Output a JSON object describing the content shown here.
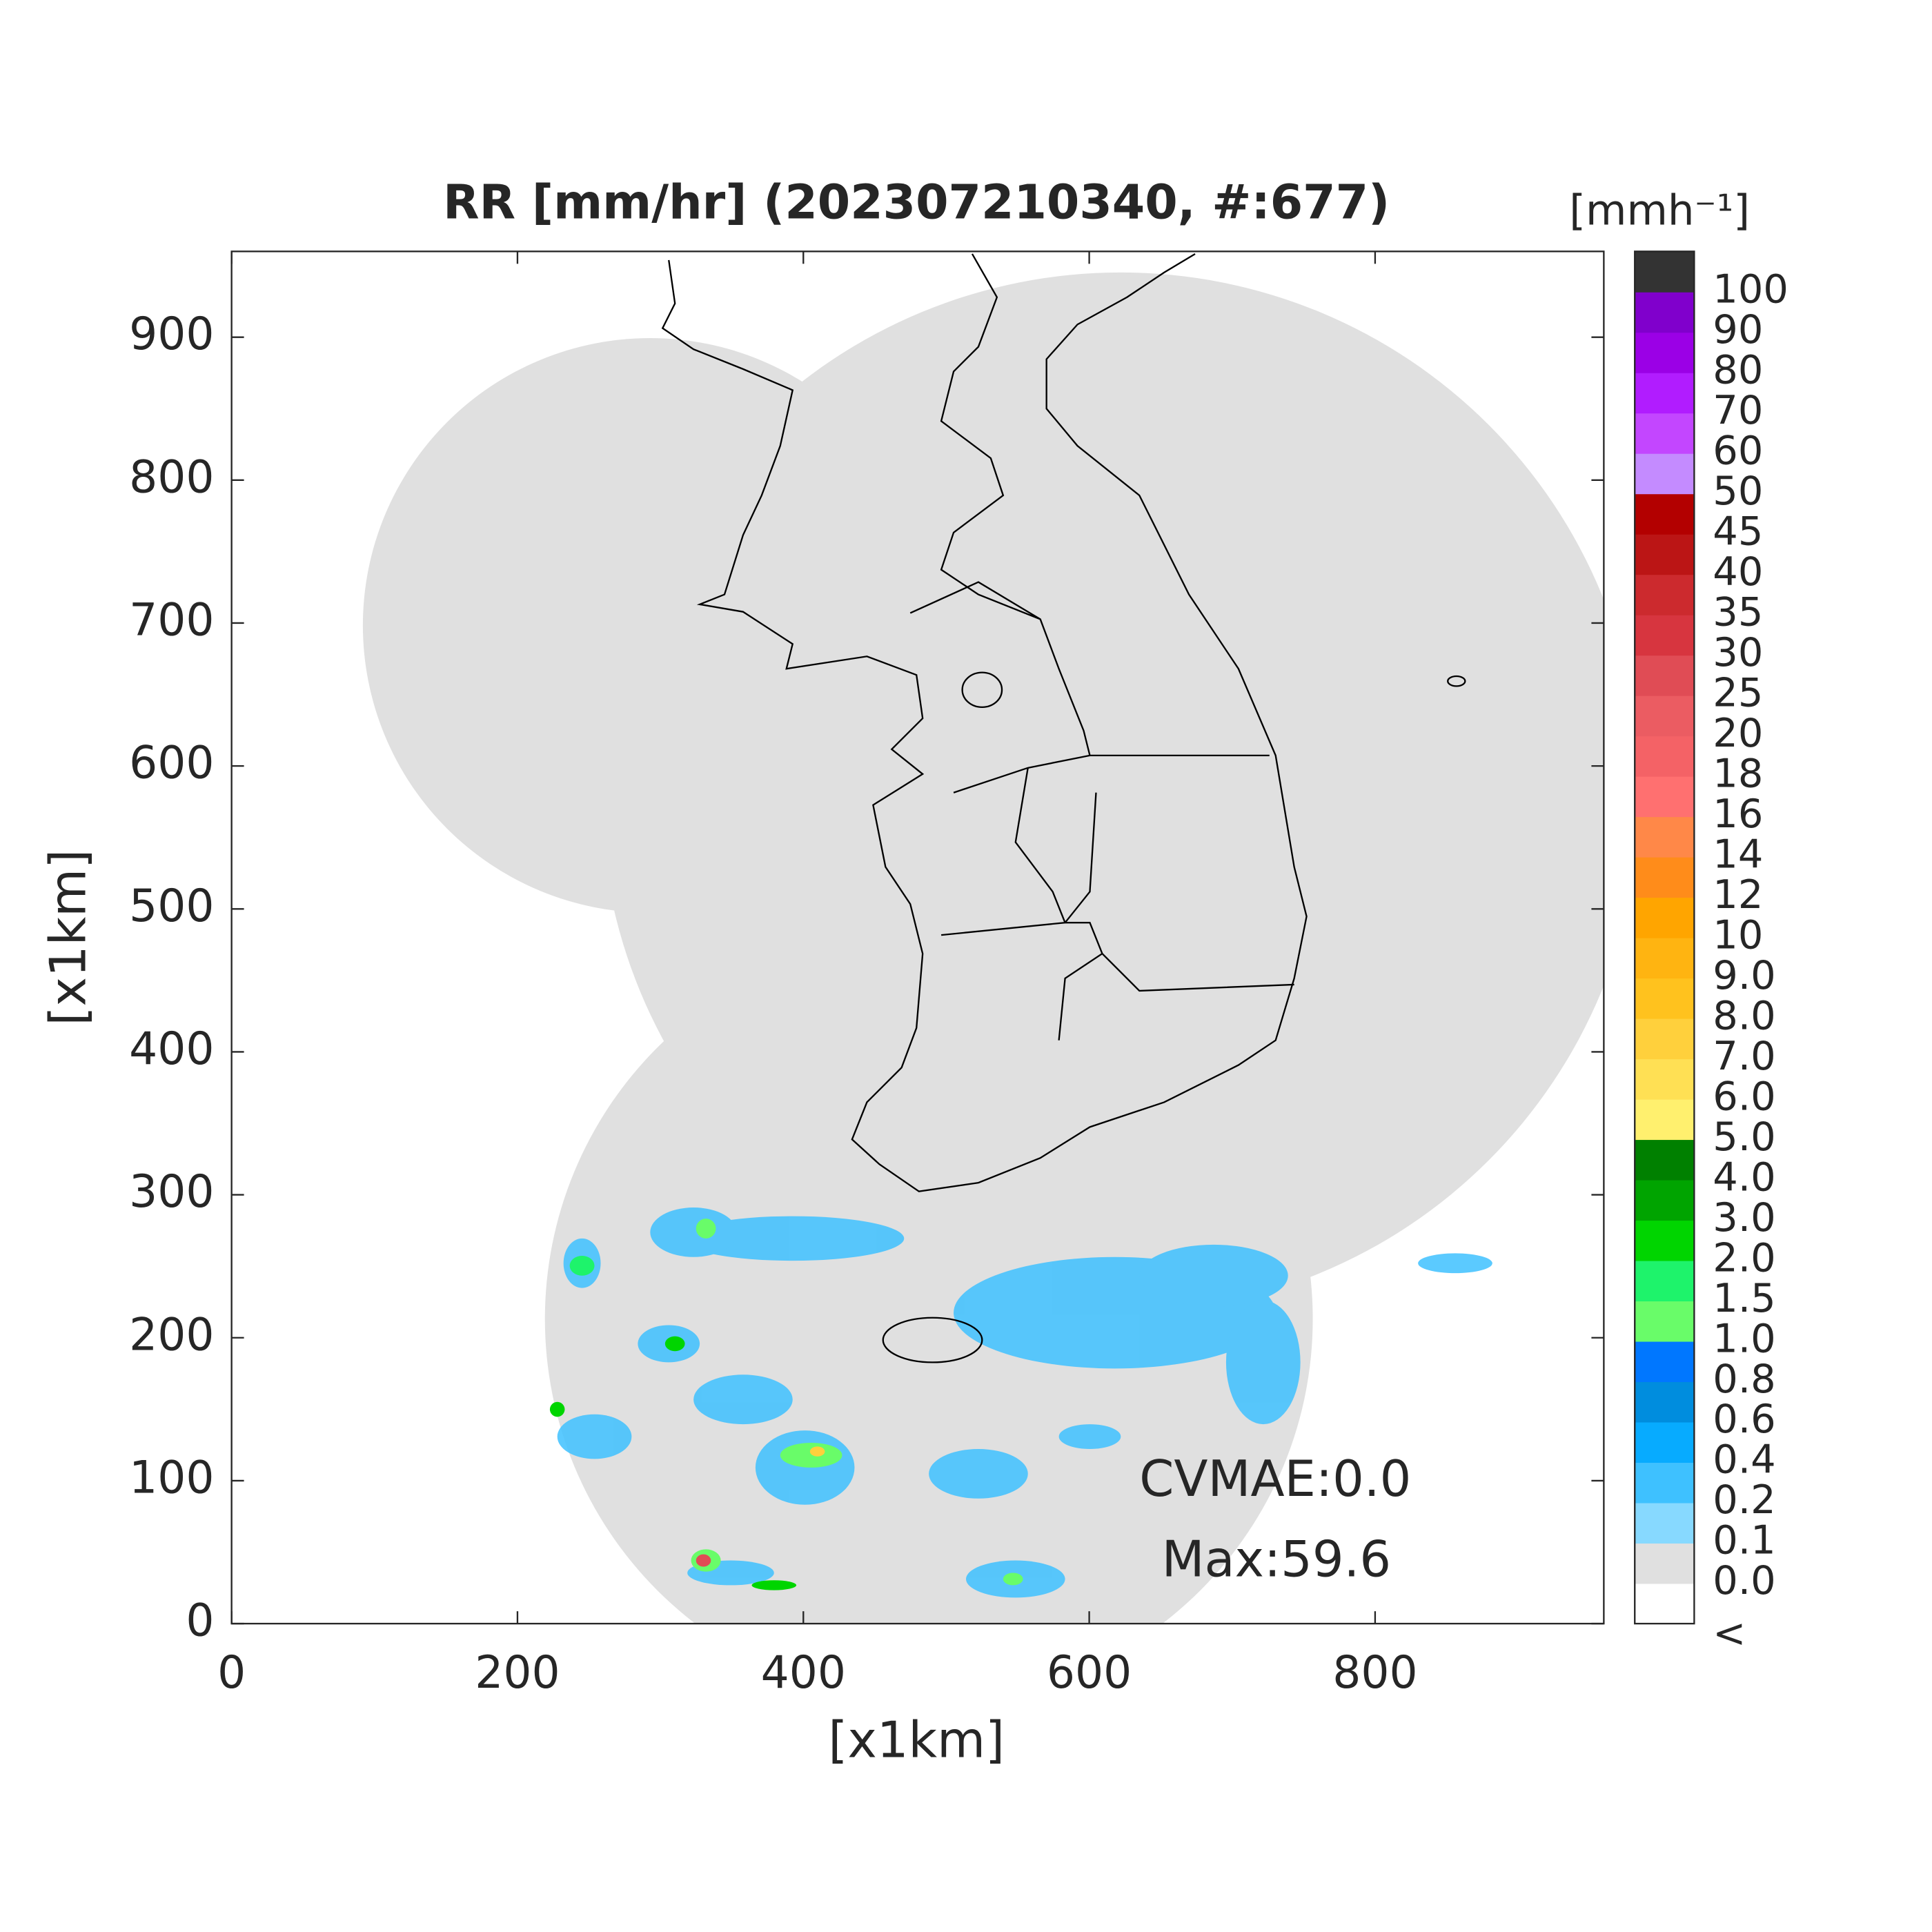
{
  "chart_data": {
    "type": "map",
    "title": "RR [mm/hr] (202307210340, #:677)",
    "x_label": "[x1km]",
    "y_label": "[x1km]",
    "xlim": [
      0,
      960
    ],
    "ylim": [
      0,
      960
    ],
    "xticks": [
      0,
      200,
      400,
      600,
      800
    ],
    "yticks": [
      0,
      100,
      200,
      300,
      400,
      500,
      600,
      700,
      800,
      900
    ],
    "annotations": [
      "CVMAE:0.0",
      "Max:59.6"
    ],
    "colorbar": {
      "unit": "[mmh⁻¹]",
      "labels": [
        "<",
        "0.0",
        "0.1",
        "0.2",
        "0.4",
        "0.6",
        "0.8",
        "1.0",
        "1.5",
        "2.0",
        "3.0",
        "4.0",
        "5.0",
        "6.0",
        "7.0",
        "8.0",
        "9.0",
        "10",
        "12",
        "14",
        "16",
        "18",
        "20",
        "25",
        "30",
        "35",
        "40",
        "45",
        "50",
        "60",
        "70",
        "80",
        "90",
        "100"
      ],
      "colors": [
        "#ffffff",
        "#e0e0e0",
        "#87d9ff",
        "#3ec1ff",
        "#07abff",
        "#008dde",
        "#0077ff",
        "#69fc69",
        "#1ef36b",
        "#00d500",
        "#00a400",
        "#008000",
        "#fff06e",
        "#ffe054",
        "#ffd03c",
        "#ffc21e",
        "#ffb411",
        "#ffa500",
        "#ff8c1a",
        "#ff8848",
        "#ff7070",
        "#f46266",
        "#eb5c62",
        "#e04c55",
        "#d7353f",
        "#cc2a2e",
        "#bb1515",
        "#b30000",
        "#c48bff",
        "#c346ff",
        "#b11cff",
        "#9b00e6",
        "#8000cc",
        "#333333"
      ]
    }
  }
}
